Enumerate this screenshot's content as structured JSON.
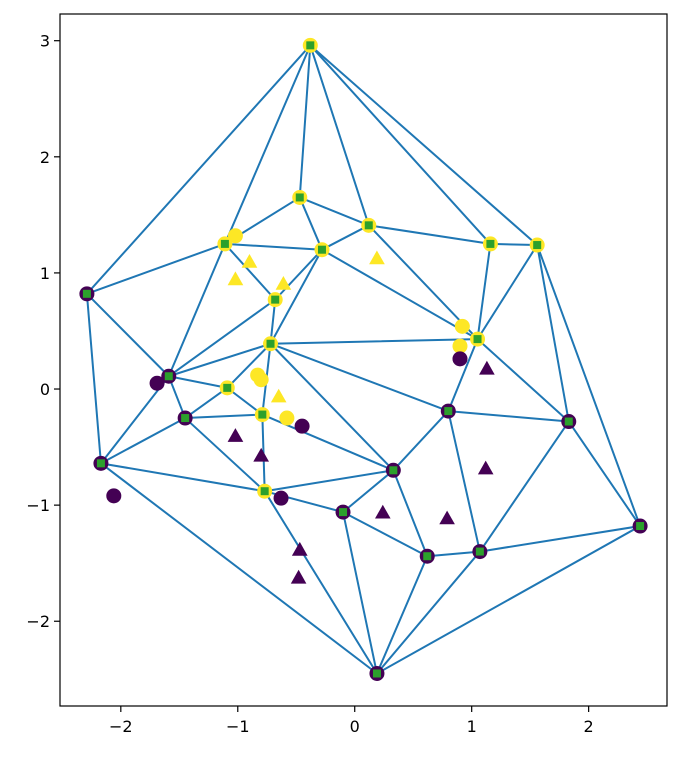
{
  "chart_data": {
    "type": "scatter",
    "title": "",
    "xlabel": "",
    "ylabel": "",
    "xlim": [
      -2.52,
      2.67
    ],
    "ylim": [
      -2.73,
      3.23
    ],
    "grid": false,
    "x_ticks": [
      {
        "value": -2,
        "label": "−2"
      },
      {
        "value": -1,
        "label": "−1"
      },
      {
        "value": 0,
        "label": "0"
      },
      {
        "value": 1,
        "label": "1"
      },
      {
        "value": 2,
        "label": "2"
      }
    ],
    "y_ticks": [
      {
        "value": -2,
        "label": "−2"
      },
      {
        "value": -1,
        "label": "−1"
      },
      {
        "value": 0,
        "label": "0"
      },
      {
        "value": 1,
        "label": "1"
      },
      {
        "value": 2,
        "label": "2"
      },
      {
        "value": 3,
        "label": "3"
      }
    ],
    "colors": {
      "mesh": "#1f77b4",
      "class_0": "#440154",
      "class_1": "#fde725",
      "vertex_marker": "#2ca02c"
    },
    "vertices": [
      [
        -0.38,
        2.96
      ],
      [
        -0.47,
        1.65
      ],
      [
        0.12,
        1.41
      ],
      [
        -1.11,
        1.25
      ],
      [
        -0.28,
        1.2
      ],
      [
        1.16,
        1.25
      ],
      [
        1.56,
        1.24
      ],
      [
        -2.29,
        0.82
      ],
      [
        -0.68,
        0.77
      ],
      [
        1.05,
        0.43
      ],
      [
        -0.72,
        0.39
      ],
      [
        -1.59,
        0.11
      ],
      [
        -1.09,
        0.01
      ],
      [
        -0.79,
        -0.22
      ],
      [
        -1.45,
        -0.25
      ],
      [
        0.8,
        -0.19
      ],
      [
        1.83,
        -0.28
      ],
      [
        -2.17,
        -0.64
      ],
      [
        0.33,
        -0.7
      ],
      [
        -0.77,
        -0.88
      ],
      [
        -0.1,
        -1.06
      ],
      [
        0.62,
        -1.44
      ],
      [
        1.07,
        -1.4
      ],
      [
        2.44,
        -1.18
      ],
      [
        0.19,
        -2.45
      ]
    ],
    "vertex_class": [
      1,
      1,
      1,
      1,
      1,
      1,
      1,
      0,
      1,
      1,
      1,
      0,
      1,
      1,
      0,
      0,
      0,
      0,
      0,
      1,
      0,
      0,
      0,
      0,
      0
    ],
    "edges": [
      [
        0,
        7
      ],
      [
        0,
        3
      ],
      [
        0,
        1
      ],
      [
        0,
        2
      ],
      [
        0,
        5
      ],
      [
        0,
        6
      ],
      [
        1,
        3
      ],
      [
        1,
        4
      ],
      [
        1,
        2
      ],
      [
        2,
        4
      ],
      [
        2,
        5
      ],
      [
        2,
        9
      ],
      [
        3,
        7
      ],
      [
        3,
        4
      ],
      [
        3,
        8
      ],
      [
        3,
        11
      ],
      [
        4,
        8
      ],
      [
        4,
        9
      ],
      [
        4,
        10
      ],
      [
        5,
        6
      ],
      [
        5,
        9
      ],
      [
        6,
        9
      ],
      [
        6,
        16
      ],
      [
        6,
        23
      ],
      [
        7,
        11
      ],
      [
        7,
        17
      ],
      [
        8,
        11
      ],
      [
        8,
        10
      ],
      [
        9,
        10
      ],
      [
        9,
        15
      ],
      [
        9,
        16
      ],
      [
        10,
        11
      ],
      [
        10,
        12
      ],
      [
        10,
        13
      ],
      [
        10,
        18
      ],
      [
        10,
        15
      ],
      [
        11,
        12
      ],
      [
        11,
        14
      ],
      [
        11,
        17
      ],
      [
        12,
        13
      ],
      [
        12,
        14
      ],
      [
        13,
        14
      ],
      [
        13,
        18
      ],
      [
        13,
        19
      ],
      [
        14,
        17
      ],
      [
        14,
        19
      ],
      [
        15,
        18
      ],
      [
        15,
        16
      ],
      [
        15,
        22
      ],
      [
        16,
        22
      ],
      [
        16,
        23
      ],
      [
        17,
        19
      ],
      [
        17,
        24
      ],
      [
        18,
        19
      ],
      [
        18,
        20
      ],
      [
        18,
        21
      ],
      [
        19,
        20
      ],
      [
        19,
        24
      ],
      [
        20,
        21
      ],
      [
        20,
        24
      ],
      [
        21,
        22
      ],
      [
        21,
        24
      ],
      [
        22,
        23
      ],
      [
        22,
        24
      ],
      [
        23,
        24
      ]
    ],
    "series": [
      {
        "marker": "circle",
        "class": 1,
        "points": [
          [
            -1.02,
            1.32
          ],
          [
            0.92,
            0.54
          ],
          [
            0.9,
            0.37
          ],
          [
            -0.83,
            0.12
          ],
          [
            -0.8,
            0.08
          ],
          [
            -0.58,
            -0.25
          ]
        ]
      },
      {
        "marker": "circle",
        "class": 0,
        "points": [
          [
            0.9,
            0.26
          ],
          [
            -1.69,
            0.05
          ],
          [
            -0.45,
            -0.32
          ],
          [
            -2.06,
            -0.92
          ],
          [
            -0.63,
            -0.94
          ]
        ]
      },
      {
        "marker": "triangle",
        "class": 1,
        "points": [
          [
            -0.9,
            1.09
          ],
          [
            0.19,
            1.12
          ],
          [
            -1.02,
            0.94
          ],
          [
            -0.61,
            0.9
          ],
          [
            -0.65,
            -0.07
          ]
        ]
      },
      {
        "marker": "triangle",
        "class": 0,
        "points": [
          [
            1.13,
            0.17
          ],
          [
            -1.02,
            -0.41
          ],
          [
            -0.8,
            -0.58
          ],
          [
            1.12,
            -0.69
          ],
          [
            0.24,
            -1.07
          ],
          [
            0.79,
            -1.12
          ],
          [
            -0.47,
            -1.39
          ],
          [
            -0.48,
            -1.63
          ]
        ]
      }
    ]
  }
}
